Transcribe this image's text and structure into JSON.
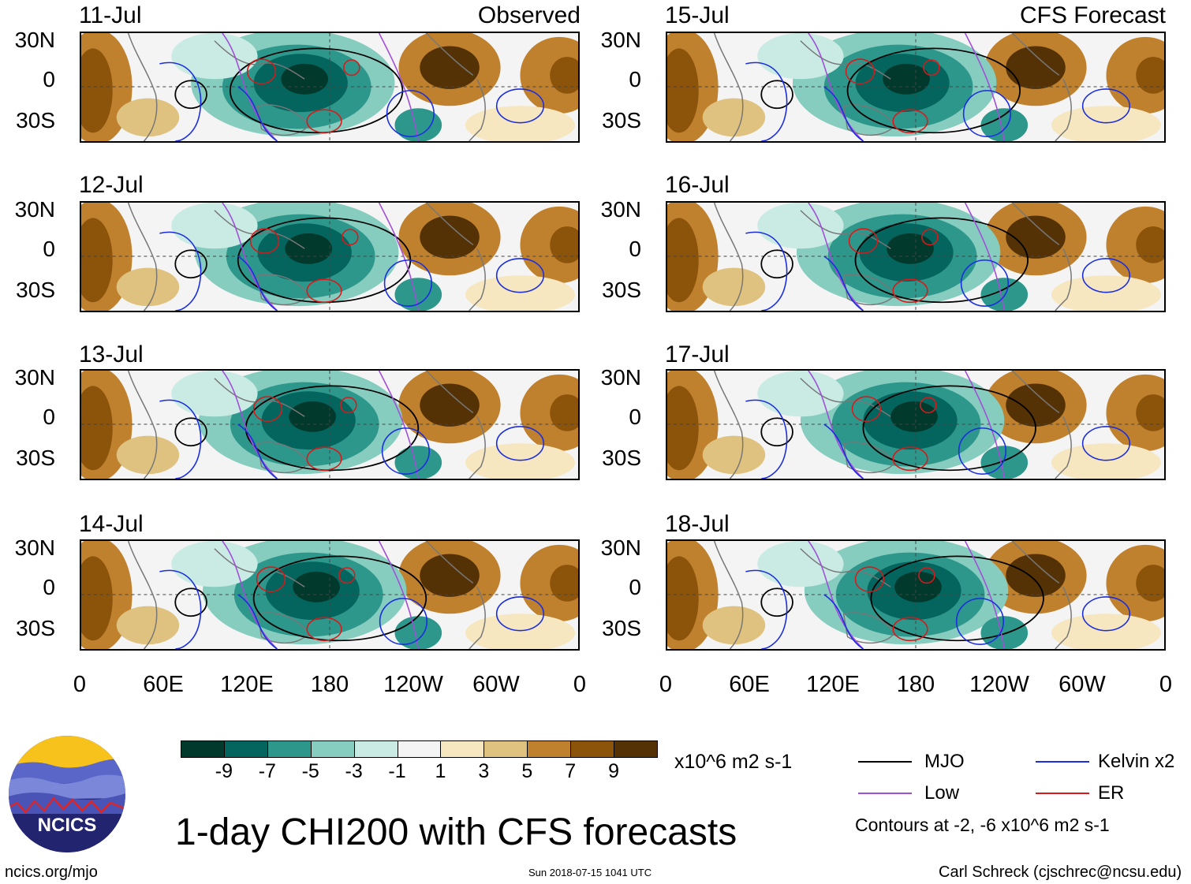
{
  "panels": {
    "left_dates": [
      "11-Jul",
      "12-Jul",
      "13-Jul",
      "14-Jul"
    ],
    "right_dates": [
      "15-Jul",
      "16-Jul",
      "17-Jul",
      "18-Jul"
    ],
    "observed_label": "Observed",
    "forecast_label": "CFS Forecast"
  },
  "lat_labels": [
    "30N",
    "0",
    "30S"
  ],
  "lon_labels": [
    "0",
    "60E",
    "120E",
    "180",
    "120W",
    "60W",
    "0"
  ],
  "colorbar": {
    "colors": [
      "#01392c",
      "#03655d",
      "#2e978c",
      "#86cdbf",
      "#c9ebe4",
      "#f4f4f4",
      "#f7e7c0",
      "#dfc27f",
      "#bf812e",
      "#8c530b",
      "#553206"
    ],
    "labels": [
      "-9",
      "-7",
      "-5",
      "-3",
      "-1",
      "1",
      "3",
      "5",
      "7",
      "9"
    ],
    "units": "x10^6 m2 s-1"
  },
  "legend": {
    "mjo": "MJO",
    "kelvin": "Kelvin x2",
    "low": "Low",
    "er": "ER",
    "contours_note": "Contours at -2, -6 x10^6 m2 s-1",
    "mjo_color": "#000000",
    "kelvin_color": "#1a2ee0",
    "low_color": "#a24ed8",
    "er_color": "#d81a1a"
  },
  "title": "1-day CHI200 with CFS forecasts",
  "logo_text": "NCICS",
  "footer": {
    "url": "ncics.org/mjo",
    "timestamp": "Sun 2018-07-15 1041 UTC",
    "author": "Carl Schreck (cjschrec@ncsu.edu)"
  }
}
